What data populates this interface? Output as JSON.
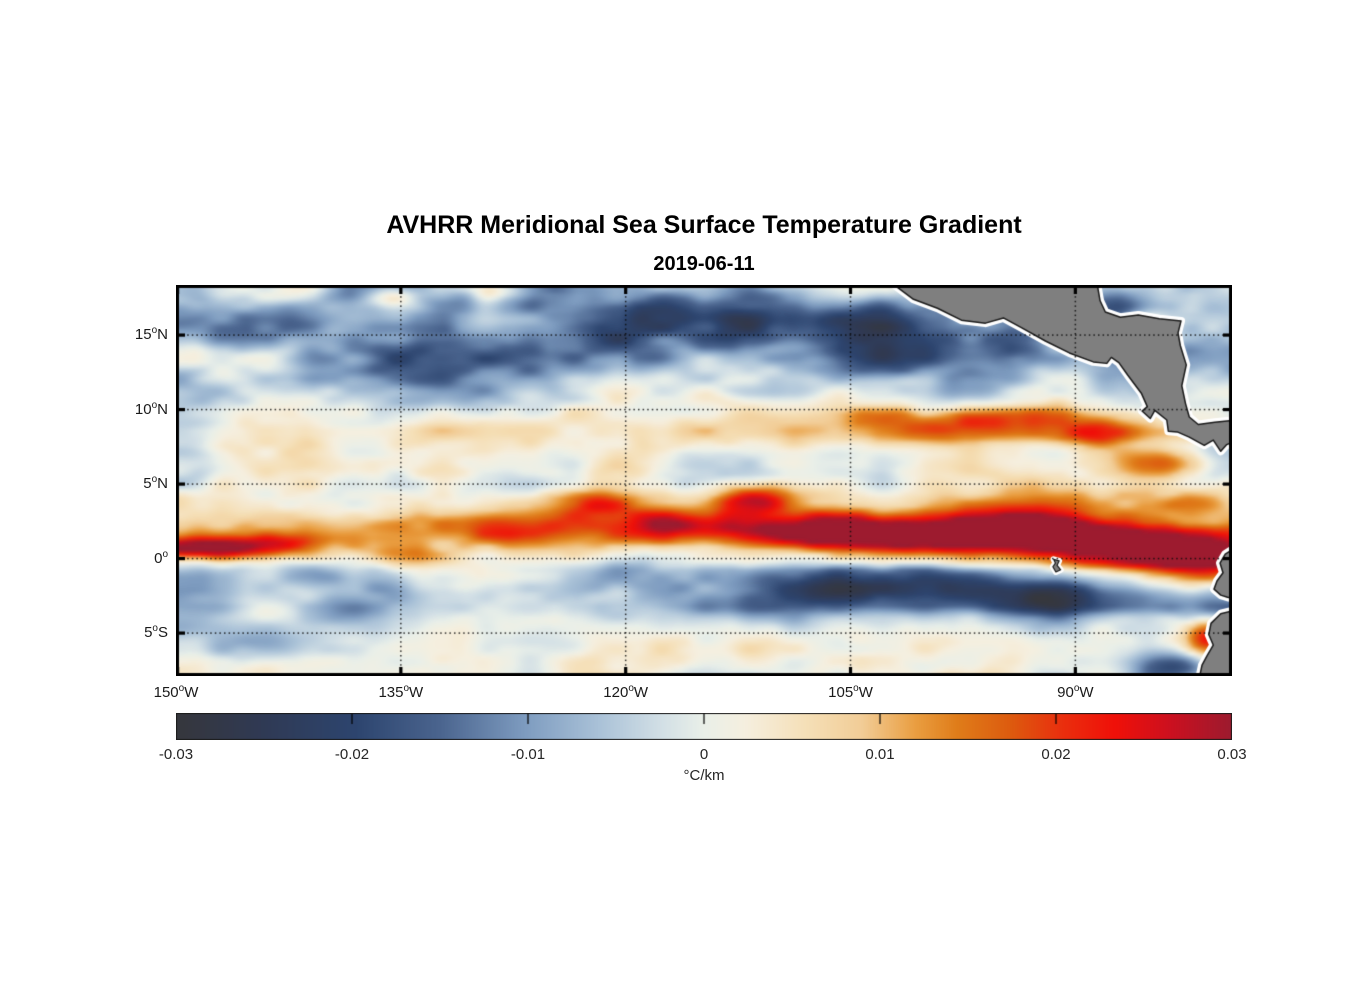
{
  "figure": {
    "title": "AVHRR Meridional Sea Surface Temperature Gradient",
    "date": "2019-06-11"
  },
  "chart_data": {
    "type": "heatmap",
    "title": "AVHRR Meridional Sea Surface Temperature Gradient",
    "subtitle": "2019-06-11",
    "variable": "meridional SST gradient",
    "units": "°C/km",
    "x_axis": {
      "tick_labels": [
        "150°W",
        "135°W",
        "120°W",
        "105°W",
        "90°W"
      ],
      "tick_lons": [
        -150,
        -135,
        -120,
        -105,
        -90
      ],
      "lon_range": [
        -150,
        -79.55
      ]
    },
    "y_axis": {
      "tick_labels": [
        "15°N",
        "10°N",
        "5°N",
        "0°",
        "5°S"
      ],
      "tick_lats": [
        15,
        10,
        5,
        0,
        -5
      ],
      "lat_range": [
        -7.88,
        18.36
      ]
    },
    "grid": {
      "style": "dotted",
      "color": "#111111",
      "on": true
    },
    "land_color": "#7f7f7f",
    "coast_outline_color": "#1a1a1a",
    "coast_buffer_color": "#ffffff",
    "colorbar": {
      "orientation": "horizontal",
      "range": [
        -0.03,
        0.03
      ],
      "ticks": [
        -0.03,
        -0.02,
        -0.01,
        0,
        0.01,
        0.02,
        0.03
      ],
      "tick_labels": [
        "-0.03",
        "-0.02",
        "-0.01",
        "0",
        "0.01",
        "0.02",
        "0.03"
      ],
      "label": "°C/km",
      "stops": [
        [
          0.0,
          "#36373d"
        ],
        [
          0.08,
          "#303a54"
        ],
        [
          0.17,
          "#2d456f"
        ],
        [
          0.25,
          "#4b658f"
        ],
        [
          0.33,
          "#7e9cc0"
        ],
        [
          0.4,
          "#aac2d8"
        ],
        [
          0.46,
          "#d3e0e6"
        ],
        [
          0.5,
          "#eaf0e9"
        ],
        [
          0.54,
          "#f6efdf"
        ],
        [
          0.6,
          "#f5dfb6"
        ],
        [
          0.65,
          "#f2cd97"
        ],
        [
          0.7,
          "#ea9f42"
        ],
        [
          0.74,
          "#e07d1a"
        ],
        [
          0.79,
          "#dd5c0f"
        ],
        [
          0.84,
          "#ea2f0e"
        ],
        [
          0.89,
          "#f01009"
        ],
        [
          0.94,
          "#ce101f"
        ],
        [
          1.0,
          "#9d1b2f"
        ]
      ]
    },
    "land_polygons": {
      "central_america": [
        [
          -102.2,
          18.45
        ],
        [
          -100.8,
          17.4
        ],
        [
          -99.2,
          16.8
        ],
        [
          -97.6,
          16.0
        ],
        [
          -96.0,
          15.8
        ],
        [
          -94.8,
          16.15
        ],
        [
          -93.6,
          15.5
        ],
        [
          -92.0,
          14.6
        ],
        [
          -90.4,
          13.8
        ],
        [
          -88.8,
          13.2
        ],
        [
          -87.9,
          13.1
        ],
        [
          -87.6,
          13.5
        ],
        [
          -87.1,
          13.15
        ],
        [
          -86.5,
          12.3
        ],
        [
          -85.6,
          11.1
        ],
        [
          -85.2,
          10.2
        ],
        [
          -85.55,
          9.9
        ],
        [
          -85.0,
          9.4
        ],
        [
          -84.7,
          9.95
        ],
        [
          -83.9,
          9.3
        ],
        [
          -83.8,
          8.55
        ],
        [
          -83.2,
          8.5
        ],
        [
          -82.4,
          8.15
        ],
        [
          -81.4,
          7.6
        ],
        [
          -80.8,
          7.95
        ],
        [
          -80.3,
          7.2
        ],
        [
          -79.9,
          7.65
        ],
        [
          -79.3,
          7.9
        ],
        [
          -79.3,
          9.3
        ],
        [
          -80.7,
          9.15
        ],
        [
          -81.8,
          9.0
        ],
        [
          -82.4,
          9.5
        ],
        [
          -82.65,
          10.4
        ],
        [
          -82.9,
          11.6
        ],
        [
          -82.6,
          13.0
        ],
        [
          -83.0,
          14.3
        ],
        [
          -83.15,
          15.15
        ],
        [
          -82.95,
          15.95
        ],
        [
          -84.4,
          16.1
        ],
        [
          -85.8,
          16.35
        ],
        [
          -87.0,
          16.2
        ],
        [
          -88.0,
          16.55
        ],
        [
          -88.35,
          17.3
        ],
        [
          -88.55,
          18.45
        ]
      ],
      "ecuador": [
        [
          -79.3,
          0.75
        ],
        [
          -80.0,
          0.3
        ],
        [
          -80.35,
          -0.3
        ],
        [
          -80.15,
          -0.95
        ],
        [
          -80.55,
          -1.5
        ],
        [
          -80.75,
          -2.05
        ],
        [
          -80.3,
          -2.45
        ],
        [
          -79.85,
          -2.6
        ],
        [
          -79.3,
          -2.7
        ]
      ],
      "peru": [
        [
          -79.3,
          -3.45
        ],
        [
          -80.3,
          -3.7
        ],
        [
          -80.95,
          -4.35
        ],
        [
          -81.1,
          -5.1
        ],
        [
          -80.8,
          -5.8
        ],
        [
          -81.2,
          -6.5
        ],
        [
          -81.55,
          -7.15
        ],
        [
          -81.75,
          -8.1
        ],
        [
          -79.3,
          -8.1
        ]
      ],
      "galapagos": [
        [
          -91.45,
          -0.05
        ],
        [
          -91.08,
          -0.15
        ],
        [
          -91.22,
          -0.45
        ],
        [
          -90.98,
          -0.75
        ],
        [
          -91.3,
          -0.9
        ],
        [
          -91.5,
          -0.55
        ],
        [
          -91.33,
          -0.3
        ]
      ]
    },
    "field_model": {
      "comment": "value(lon,lat) = mean(lat) + east_adjust + gaussian features + amp(lat)*noise, units C/km",
      "mean_profile": [
        [
          18.4,
          -0.0055
        ],
        [
          15.5,
          -0.0065
        ],
        [
          13.5,
          -0.006
        ],
        [
          11.5,
          -0.0035
        ],
        [
          9.5,
          0.001
        ],
        [
          8.5,
          0.002
        ],
        [
          7.0,
          0.0005
        ],
        [
          5.5,
          0.001
        ],
        [
          4.0,
          0.005
        ],
        [
          2.5,
          0.0065
        ],
        [
          1.2,
          0.005
        ],
        [
          0.2,
          0.002
        ],
        [
          -0.8,
          -0.002
        ],
        [
          -2.0,
          -0.0045
        ],
        [
          -3.2,
          -0.0045
        ],
        [
          -4.5,
          -0.002
        ],
        [
          -6.0,
          0.0
        ],
        [
          -7.9,
          0.001
        ]
      ],
      "amp_profile": [
        [
          18.4,
          0.0115
        ],
        [
          14.0,
          0.011
        ],
        [
          11.0,
          0.0085
        ],
        [
          8.0,
          0.0075
        ],
        [
          5.0,
          0.008
        ],
        [
          2.0,
          0.0085
        ],
        [
          0.0,
          0.008
        ],
        [
          -2.0,
          0.0085
        ],
        [
          -4.0,
          0.0075
        ],
        [
          -7.9,
          0.0065
        ]
      ],
      "east_adjust": [
        {
          "lonMin": -113,
          "latMin": -0.5,
          "latMax": 2.2,
          "delta": 0.004
        },
        {
          "lonMin": -118,
          "latMin": -3.6,
          "latMax": -0.6,
          "delta": -0.0035
        },
        {
          "lonMin": -106,
          "latMin": 7.8,
          "latMax": 10.0,
          "delta": 0.003
        }
      ],
      "features": [
        [
          -148.3,
          0.65,
          3.2,
          0.5,
          0.027
        ],
        [
          -143.0,
          1.1,
          2.2,
          0.5,
          0.012
        ],
        [
          -135.6,
          0.2,
          2.8,
          0.6,
          0.012
        ],
        [
          -128.0,
          2.3,
          5.0,
          0.75,
          0.013
        ],
        [
          -122.3,
          3.7,
          2.2,
          0.65,
          0.017
        ],
        [
          -116.3,
          2.3,
          3.5,
          0.75,
          0.019
        ],
        [
          -111.3,
          4.0,
          2.2,
          0.7,
          0.021
        ],
        [
          -107.3,
          2.0,
          4.0,
          0.85,
          0.024
        ],
        [
          -99.5,
          1.6,
          5.0,
          0.9,
          0.029
        ],
        [
          -92.8,
          2.0,
          3.2,
          0.85,
          0.026
        ],
        [
          -86.3,
          0.7,
          4.0,
          0.95,
          0.031
        ],
        [
          -81.3,
          -0.6,
          2.2,
          1.1,
          0.03
        ],
        [
          -81.2,
          -5.3,
          1.1,
          0.9,
          0.021
        ],
        [
          -83.4,
          -7.4,
          1.8,
          0.8,
          -0.019
        ],
        [
          -104.0,
          -1.9,
          7.0,
          0.9,
          -0.013
        ],
        [
          -92.5,
          -2.7,
          5.0,
          0.85,
          -0.015
        ],
        [
          -120.5,
          15.6,
          8.0,
          1.5,
          -0.012
        ],
        [
          -99.8,
          14.6,
          7.0,
          1.5,
          -0.014
        ],
        [
          -133.5,
          13.3,
          5.0,
          1.2,
          -0.01
        ],
        [
          -110.5,
          16.8,
          5.0,
          1.3,
          -0.013
        ],
        [
          -95.5,
          9.0,
          6.0,
          0.8,
          0.012
        ],
        [
          -88.2,
          16.9,
          2.2,
          0.7,
          -0.018
        ],
        [
          -135.7,
          17.6,
          1.4,
          0.6,
          0.013
        ],
        [
          -128.4,
          17.9,
          1.4,
          0.55,
          0.012
        ],
        [
          -89.0,
          8.3,
          2.2,
          0.7,
          0.013
        ],
        [
          -84.8,
          6.6,
          2.4,
          0.75,
          0.011
        ]
      ],
      "noise_octaves": [
        [
          22,
          9,
          0.55,
          11
        ],
        [
          11,
          4.5,
          0.3,
          29
        ],
        [
          5.5,
          2.6,
          0.15,
          47
        ]
      ],
      "noise_boost": 1.5
    }
  }
}
